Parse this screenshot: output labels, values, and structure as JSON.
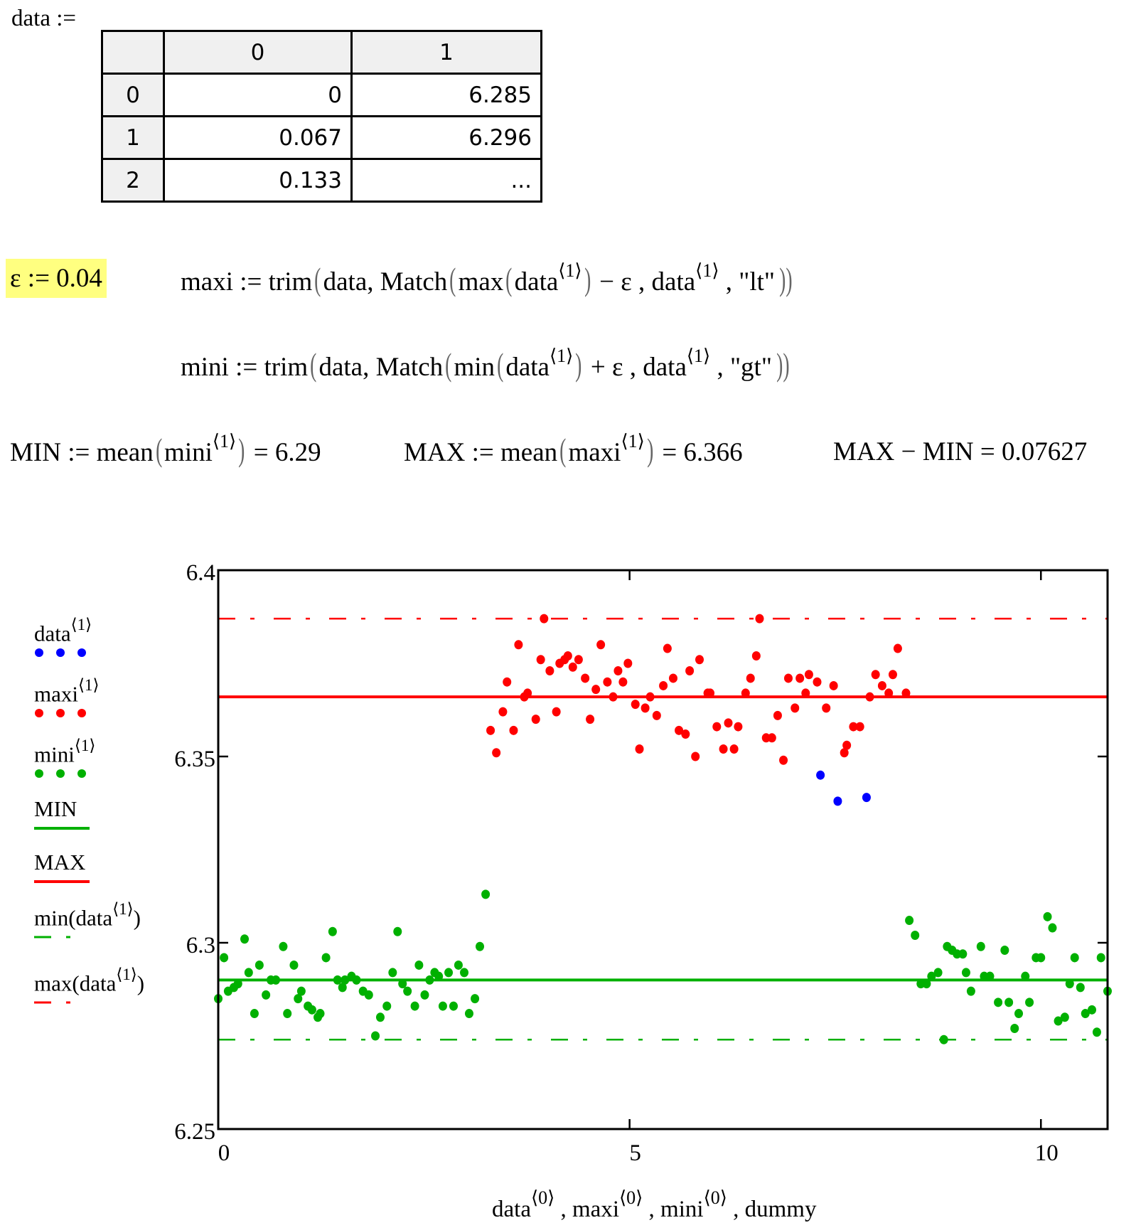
{
  "matrix": {
    "label": "data :=",
    "col_headers": [
      "0",
      "1"
    ],
    "rows": [
      {
        "index": "0",
        "c0": "0",
        "c1": "6.285"
      },
      {
        "index": "1",
        "c0": "0.067",
        "c1": "6.296"
      },
      {
        "index": "2",
        "c0": "0.133",
        "c1": "..."
      }
    ]
  },
  "epsilon": {
    "text": "ε := 0.04",
    "highlight_color": "#ffff80"
  },
  "maxi_def": {
    "p1": "maxi := trim",
    "p2": "data, Match",
    "p3": "max",
    "p4": "data",
    "sup1": "⟨1⟩",
    "p5": " − ε , data",
    "sup2": "⟨1⟩",
    "p6": " , \"lt\""
  },
  "mini_def": {
    "p1": "mini := trim",
    "p2": "data, Match",
    "p3": "min",
    "p4": "data",
    "sup1": "⟨1⟩",
    "p5": " + ε , data",
    "sup2": "⟨1⟩",
    "p6": " , \"gt\""
  },
  "results": {
    "min_lhs": "MIN := mean",
    "min_arg": "mini",
    "min_sup": "⟨1⟩",
    "min_val": " = 6.29",
    "max_lhs": "MAX := mean",
    "max_arg": "maxi",
    "max_sup": "⟨1⟩",
    "max_val": " = 6.366",
    "diff": "MAX − MIN = 0.07627"
  },
  "legend": [
    {
      "label": "data",
      "sup": "⟨1⟩",
      "style": "dots",
      "color": "#0000ff"
    },
    {
      "label": "maxi",
      "sup": "⟨1⟩",
      "style": "dots",
      "color": "#ff0000"
    },
    {
      "label": "mini",
      "sup": "⟨1⟩",
      "style": "dots",
      "color": "#00b000"
    },
    {
      "label": "MIN",
      "sup": "",
      "style": "solid",
      "color": "#00b000"
    },
    {
      "label": "MAX",
      "sup": "",
      "style": "solid",
      "color": "#ff0000"
    },
    {
      "label": "min(data",
      "sup": "⟨1⟩",
      "close": ")",
      "style": "dashdot",
      "color": "#00b000"
    },
    {
      "label": "max(data",
      "sup": "⟨1⟩",
      "close": ")",
      "style": "dashdot",
      "color": "#ff0000"
    }
  ],
  "chart_data": {
    "type": "scatter",
    "xlabel_parts": [
      "data",
      "⟨0⟩",
      " , maxi",
      "⟨0⟩",
      " , mini",
      "⟨0⟩",
      " , dummy"
    ],
    "xlim": [
      0,
      10.81
    ],
    "ylim": [
      6.25,
      6.4
    ],
    "xticks": [
      "0",
      "5",
      "10"
    ],
    "yticks": [
      "6.25",
      "6.3",
      "6.35",
      "6.4"
    ],
    "grid": false,
    "legend_placement": "left-outside",
    "hlines": [
      {
        "name": "MIN",
        "y": 6.29,
        "color": "#00b000",
        "style": "solid"
      },
      {
        "name": "MAX",
        "y": 6.366,
        "color": "#ff0000",
        "style": "solid"
      },
      {
        "name": "min(data⟨1⟩)",
        "y": 6.274,
        "color": "#00b000",
        "style": "dashdot"
      },
      {
        "name": "max(data⟨1⟩)",
        "y": 6.387,
        "color": "#ff0000",
        "style": "dashdot"
      }
    ],
    "series": [
      {
        "name": "data⟨1⟩",
        "color": "#0000ff",
        "points": [
          [
            7.32,
            6.345
          ],
          [
            7.53,
            6.338
          ],
          [
            7.88,
            6.339
          ]
        ]
      },
      {
        "name": "maxi⟨1⟩",
        "color": "#ff0000",
        "points": [
          [
            3.31,
            6.357
          ],
          [
            3.38,
            6.351
          ],
          [
            3.46,
            6.362
          ],
          [
            3.51,
            6.37
          ],
          [
            3.59,
            6.357
          ],
          [
            3.65,
            6.38
          ],
          [
            3.72,
            6.366
          ],
          [
            3.76,
            6.367
          ],
          [
            3.86,
            6.36
          ],
          [
            3.92,
            6.376
          ],
          [
            3.96,
            6.387
          ],
          [
            4.03,
            6.373
          ],
          [
            4.11,
            6.362
          ],
          [
            4.15,
            6.375
          ],
          [
            4.21,
            6.376
          ],
          [
            4.25,
            6.377
          ],
          [
            4.31,
            6.374
          ],
          [
            4.38,
            6.376
          ],
          [
            4.46,
            6.371
          ],
          [
            4.52,
            6.36
          ],
          [
            4.59,
            6.368
          ],
          [
            4.65,
            6.38
          ],
          [
            4.73,
            6.37
          ],
          [
            4.8,
            6.366
          ],
          [
            4.86,
            6.373
          ],
          [
            4.92,
            6.37
          ],
          [
            4.98,
            6.375
          ],
          [
            5.07,
            6.364
          ],
          [
            5.12,
            6.352
          ],
          [
            5.19,
            6.363
          ],
          [
            5.25,
            6.366
          ],
          [
            5.33,
            6.361
          ],
          [
            5.41,
            6.369
          ],
          [
            5.46,
            6.379
          ],
          [
            5.53,
            6.371
          ],
          [
            5.6,
            6.357
          ],
          [
            5.68,
            6.356
          ],
          [
            5.73,
            6.373
          ],
          [
            5.8,
            6.35
          ],
          [
            5.85,
            6.376
          ],
          [
            5.95,
            6.367
          ],
          [
            5.98,
            6.367
          ],
          [
            6.06,
            6.358
          ],
          [
            6.14,
            6.352
          ],
          [
            6.2,
            6.359
          ],
          [
            6.27,
            6.352
          ],
          [
            6.32,
            6.358
          ],
          [
            6.41,
            6.367
          ],
          [
            6.47,
            6.371
          ],
          [
            6.54,
            6.377
          ],
          [
            6.58,
            6.387
          ],
          [
            6.66,
            6.355
          ],
          [
            6.73,
            6.355
          ],
          [
            6.8,
            6.361
          ],
          [
            6.87,
            6.349
          ],
          [
            6.93,
            6.371
          ],
          [
            7.01,
            6.363
          ],
          [
            7.07,
            6.371
          ],
          [
            7.14,
            6.367
          ],
          [
            7.18,
            6.372
          ],
          [
            7.28,
            6.37
          ],
          [
            7.39,
            6.363
          ],
          [
            7.48,
            6.369
          ],
          [
            7.61,
            6.351
          ],
          [
            7.64,
            6.353
          ],
          [
            7.72,
            6.358
          ],
          [
            7.8,
            6.358
          ],
          [
            7.92,
            6.366
          ],
          [
            7.99,
            6.372
          ],
          [
            8.07,
            6.369
          ],
          [
            8.15,
            6.367
          ],
          [
            8.2,
            6.372
          ],
          [
            8.26,
            6.379
          ],
          [
            8.36,
            6.367
          ]
        ]
      },
      {
        "name": "mini⟨1⟩",
        "color": "#00b000",
        "points": [
          [
            0.0,
            6.285
          ],
          [
            0.07,
            6.296
          ],
          [
            0.12,
            6.287
          ],
          [
            0.19,
            6.288
          ],
          [
            0.24,
            6.289
          ],
          [
            0.32,
            6.301
          ],
          [
            0.37,
            6.292
          ],
          [
            0.44,
            6.281
          ],
          [
            0.5,
            6.294
          ],
          [
            0.58,
            6.286
          ],
          [
            0.64,
            6.29
          ],
          [
            0.7,
            6.29
          ],
          [
            0.79,
            6.299
          ],
          [
            0.84,
            6.281
          ],
          [
            0.92,
            6.294
          ],
          [
            0.97,
            6.285
          ],
          [
            1.01,
            6.287
          ],
          [
            1.09,
            6.283
          ],
          [
            1.14,
            6.282
          ],
          [
            1.21,
            6.28
          ],
          [
            1.24,
            6.281
          ],
          [
            1.31,
            6.296
          ],
          [
            1.39,
            6.303
          ],
          [
            1.45,
            6.29
          ],
          [
            1.51,
            6.288
          ],
          [
            1.54,
            6.29
          ],
          [
            1.62,
            6.291
          ],
          [
            1.68,
            6.29
          ],
          [
            1.76,
            6.287
          ],
          [
            1.83,
            6.286
          ],
          [
            1.91,
            6.275
          ],
          [
            1.97,
            6.28
          ],
          [
            2.05,
            6.283
          ],
          [
            2.12,
            6.292
          ],
          [
            2.18,
            6.303
          ],
          [
            2.24,
            6.289
          ],
          [
            2.3,
            6.287
          ],
          [
            2.39,
            6.283
          ],
          [
            2.44,
            6.294
          ],
          [
            2.51,
            6.286
          ],
          [
            2.57,
            6.29
          ],
          [
            2.63,
            6.292
          ],
          [
            2.68,
            6.291
          ],
          [
            2.73,
            6.283
          ],
          [
            2.8,
            6.292
          ],
          [
            2.86,
            6.283
          ],
          [
            2.92,
            6.294
          ],
          [
            2.99,
            6.292
          ],
          [
            3.05,
            6.281
          ],
          [
            3.12,
            6.285
          ],
          [
            3.18,
            6.299
          ],
          [
            3.25,
            6.313
          ],
          [
            8.4,
            6.306
          ],
          [
            8.47,
            6.302
          ],
          [
            8.54,
            6.289
          ],
          [
            8.61,
            6.289
          ],
          [
            8.67,
            6.291
          ],
          [
            8.75,
            6.292
          ],
          [
            8.82,
            6.274
          ],
          [
            8.86,
            6.299
          ],
          [
            8.92,
            6.298
          ],
          [
            8.98,
            6.297
          ],
          [
            9.05,
            6.297
          ],
          [
            9.09,
            6.292
          ],
          [
            9.15,
            6.287
          ],
          [
            9.27,
            6.299
          ],
          [
            9.31,
            6.291
          ],
          [
            9.38,
            6.291
          ],
          [
            9.48,
            6.284
          ],
          [
            9.56,
            6.298
          ],
          [
            9.61,
            6.284
          ],
          [
            9.68,
            6.277
          ],
          [
            9.73,
            6.281
          ],
          [
            9.81,
            6.291
          ],
          [
            9.86,
            6.284
          ],
          [
            9.94,
            6.296
          ],
          [
            10.0,
            6.296
          ],
          [
            10.08,
            6.307
          ],
          [
            10.14,
            6.304
          ],
          [
            10.21,
            6.279
          ],
          [
            10.29,
            6.28
          ],
          [
            10.35,
            6.289
          ],
          [
            10.41,
            6.296
          ],
          [
            10.48,
            6.288
          ],
          [
            10.54,
            6.281
          ],
          [
            10.62,
            6.282
          ],
          [
            10.68,
            6.276
          ],
          [
            10.73,
            6.296
          ],
          [
            10.81,
            6.287
          ]
        ]
      }
    ]
  }
}
